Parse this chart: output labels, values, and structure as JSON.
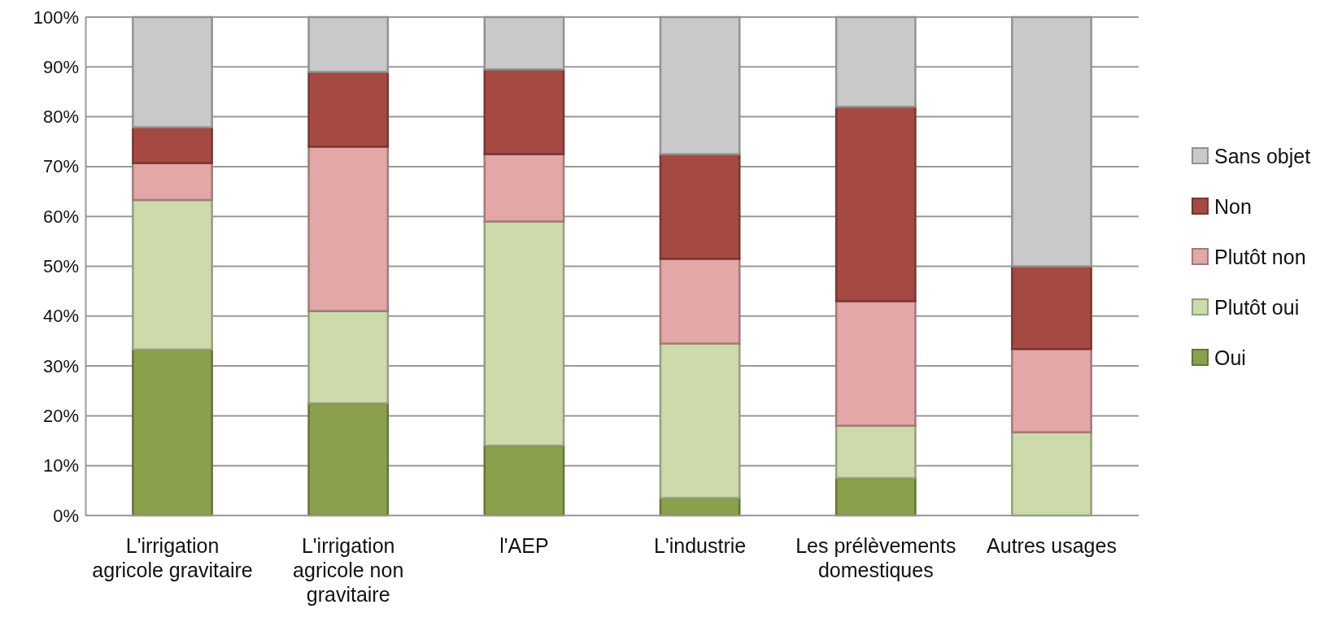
{
  "chart_data": {
    "type": "bar",
    "stacked": true,
    "categories": [
      "L'irrigation agricole gravitaire",
      "L'irrigation agricole non gravitaire",
      "l'AEP",
      "L'industrie",
      "Les prélèvements domestiques",
      "Autres usages"
    ],
    "series": [
      {
        "name": "Oui",
        "color": "#8aa04a",
        "values": [
          33.3,
          22.5,
          14,
          3.5,
          7.5,
          0
        ]
      },
      {
        "name": "Plutôt oui",
        "color": "#cddbab",
        "values": [
          30,
          18.5,
          45,
          31,
          10.5,
          16.7
        ]
      },
      {
        "name": "Plutôt non",
        "color": "#e2a7a6",
        "values": [
          7.4,
          33,
          13.5,
          17,
          25,
          16.7
        ]
      },
      {
        "name": "Non",
        "color": "#a54a43",
        "values": [
          7.2,
          15,
          17,
          21,
          39,
          16.6
        ]
      },
      {
        "name": "Sans objet",
        "color": "#c9c9c9",
        "values": [
          22.1,
          11,
          10.5,
          27.5,
          18,
          50
        ]
      }
    ],
    "ylim": [
      0,
      100
    ],
    "yticks": [
      {
        "value": 0,
        "label": "0%"
      },
      {
        "value": 10,
        "label": "10%"
      },
      {
        "value": 20,
        "label": "20%"
      },
      {
        "value": 30,
        "label": "30%"
      },
      {
        "value": 40,
        "label": "40%"
      },
      {
        "value": 50,
        "label": "50%"
      },
      {
        "value": 60,
        "label": "60%"
      },
      {
        "value": 70,
        "label": "70%"
      },
      {
        "value": 80,
        "label": "80%"
      },
      {
        "value": 90,
        "label": "90%"
      },
      {
        "value": 100,
        "label": "100%"
      }
    ],
    "grid": "y",
    "legend": "right"
  }
}
